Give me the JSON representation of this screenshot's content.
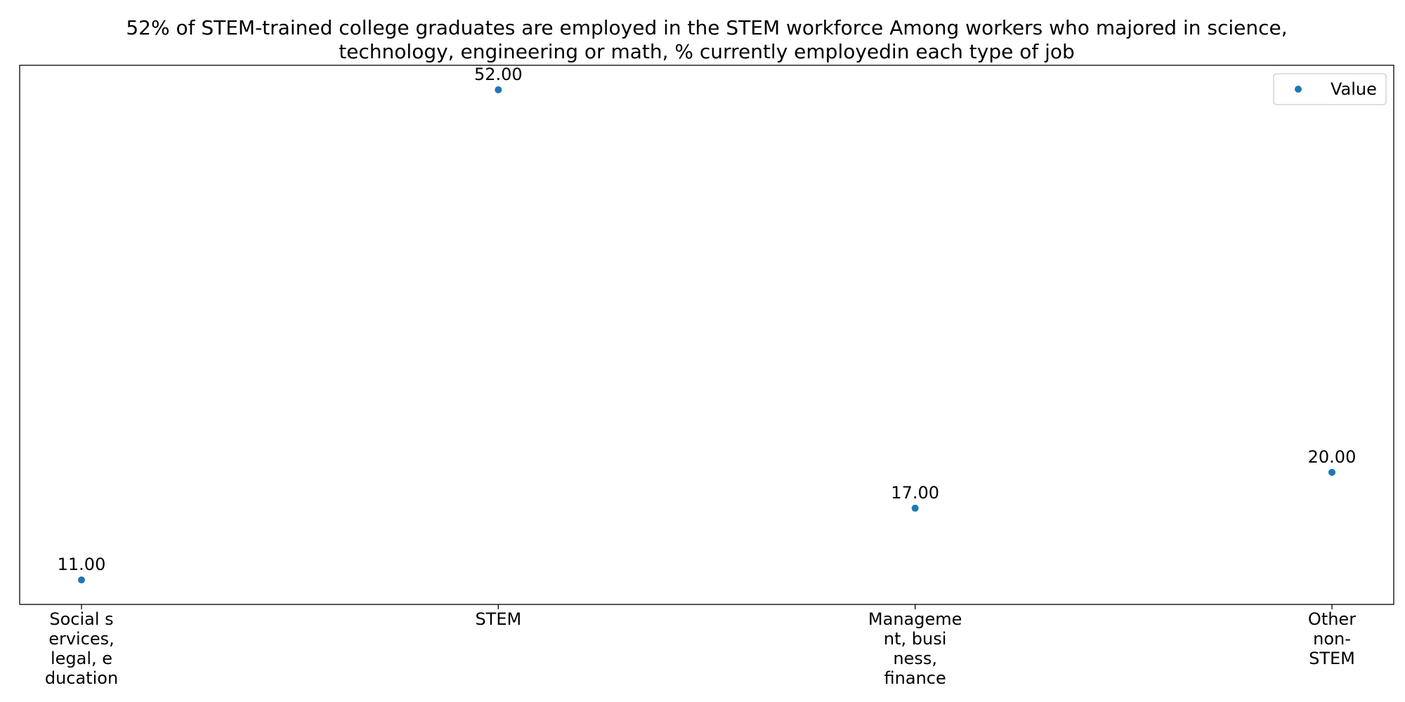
{
  "chart_data": {
    "type": "scatter",
    "title_lines": [
      "52% of STEM-trained college graduates are employed in the STEM workforce Among workers who majored in science,",
      "technology, engineering or math, % currently employedin each type of job"
    ],
    "categories": [
      [
        "Social s",
        "ervices,",
        "legal, e",
        "ducation"
      ],
      [
        "STEM"
      ],
      [
        "Manageme",
        "nt, busi",
        "ness,",
        "finance"
      ],
      [
        "Other",
        "non-",
        "STEM"
      ]
    ],
    "series": [
      {
        "name": "Value",
        "values": [
          11,
          52,
          17,
          20
        ],
        "labels": [
          "11.00",
          "52.00",
          "17.00",
          "20.00"
        ],
        "color": "#1f77b4"
      }
    ],
    "ylim": [
      8.95,
      54.05
    ],
    "grid": false,
    "legend_position": "top-right",
    "xlabel": "",
    "ylabel": ""
  }
}
